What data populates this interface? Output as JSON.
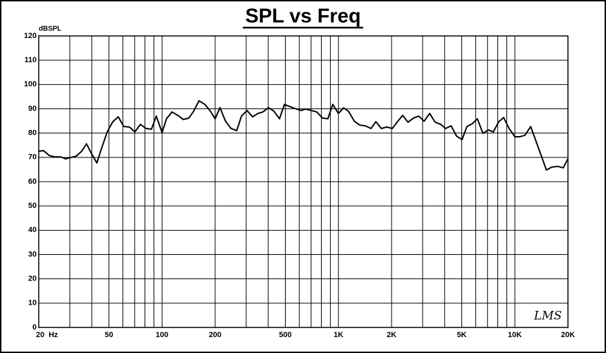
{
  "chart_data": {
    "type": "line",
    "title": "SPL vs Freq",
    "y_label": "dBSPL",
    "logo": "LMS",
    "xscale": "log",
    "grid": true,
    "xlim": [
      20,
      20000
    ],
    "ylim": [
      0,
      120
    ],
    "yticks": [
      0,
      10,
      20,
      30,
      40,
      50,
      60,
      70,
      80,
      90,
      100,
      110,
      120
    ],
    "xticks": [
      {
        "value": 20,
        "label": "20  Hz"
      },
      50,
      100,
      200,
      500,
      {
        "value": 1000,
        "label": "1K"
      },
      {
        "value": 2000,
        "label": "2K"
      },
      {
        "value": 5000,
        "label": "5K"
      },
      {
        "value": 10000,
        "label": "10K"
      },
      {
        "value": 20000,
        "label": "20K"
      }
    ],
    "xgrid": [
      30,
      40,
      50,
      60,
      70,
      80,
      90,
      100,
      200,
      300,
      400,
      500,
      600,
      700,
      800,
      900,
      1000,
      2000,
      3000,
      4000,
      5000,
      6000,
      7000,
      8000,
      9000,
      10000
    ],
    "series": [
      {
        "color": "#000000",
        "x": [
          20,
          21.3,
          22.9,
          24.6,
          26.7,
          28.4,
          30.6,
          32.6,
          35,
          37.3,
          39.7,
          42.7,
          45.5,
          48.9,
          52.6,
          56.5,
          60.7,
          65.3,
          70.2,
          75.4,
          81.1,
          87.1,
          92.8,
          100,
          106,
          114,
          123,
          132,
          142,
          151,
          162,
          175,
          188,
          200,
          213,
          229,
          246,
          265,
          282,
          303,
          326,
          350,
          373,
          401,
          431,
          463,
          494,
          530,
          570,
          613,
          653,
          702,
          754,
          811,
          871,
          928,
          1000,
          1070,
          1140,
          1230,
          1320,
          1420,
          1530,
          1630,
          1750,
          1880,
          2020,
          2150,
          2310,
          2480,
          2670,
          2850,
          3060,
          3290,
          3530,
          3800,
          4050,
          4350,
          4670,
          5020,
          5350,
          5750,
          6130,
          6590,
          7080,
          7550,
          8110,
          8640,
          9280,
          10000,
          10700,
          11400,
          12300,
          15100,
          16200,
          17500,
          18800,
          20000
        ],
        "values": [
          72.5,
          72.8,
          70.8,
          70.2,
          70.2,
          69.4,
          70.0,
          70.5,
          72.5,
          75.6,
          71.7,
          67.7,
          73.9,
          80.5,
          84.7,
          86.7,
          82.7,
          82.5,
          80.5,
          83.6,
          81.9,
          81.6,
          87.0,
          80.2,
          85.9,
          88.7,
          87.3,
          85.6,
          86.2,
          89.0,
          93.3,
          91.8,
          89.0,
          85.9,
          90.5,
          84.9,
          81.9,
          81.0,
          87.0,
          89.3,
          86.7,
          88.1,
          88.7,
          90.5,
          89.0,
          85.9,
          91.8,
          90.9,
          90.1,
          89.3,
          89.9,
          89.3,
          88.7,
          86.2,
          85.9,
          91.8,
          88.1,
          90.4,
          89.0,
          84.9,
          83.3,
          83.0,
          81.9,
          84.7,
          81.9,
          82.5,
          81.9,
          84.5,
          87.3,
          84.5,
          86.2,
          87.0,
          84.9,
          88.1,
          84.5,
          83.6,
          81.9,
          83.0,
          78.8,
          77.3,
          82.7,
          83.9,
          85.9,
          79.9,
          81.3,
          80.5,
          84.7,
          86.4,
          81.9,
          78.5,
          78.5,
          79.1,
          82.7,
          64.8,
          66.0,
          66.3,
          65.7,
          69.4
        ]
      }
    ]
  }
}
